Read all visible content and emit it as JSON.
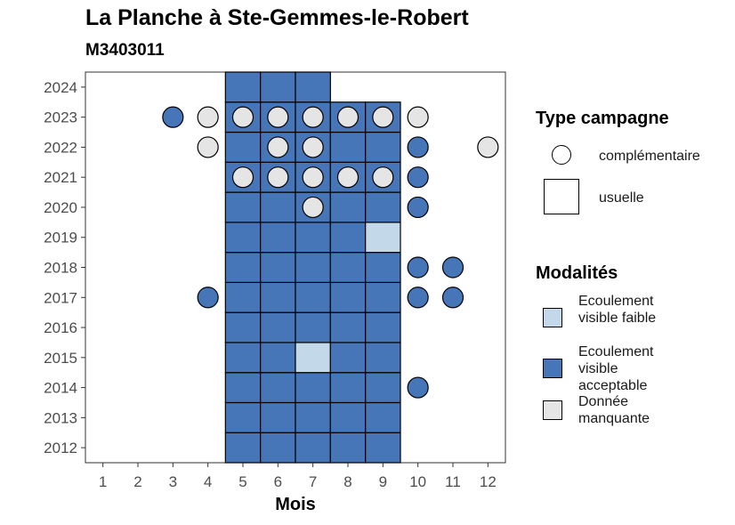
{
  "chart_data": {
    "type": "heatmap",
    "title": "La Planche à Ste-Gemmes-le-Robert",
    "subtitle": "M3403011",
    "xlabel": "Mois",
    "ylabel": "",
    "x_ticks": [
      "1",
      "2",
      "3",
      "4",
      "5",
      "6",
      "7",
      "8",
      "9",
      "10",
      "11",
      "12"
    ],
    "y_ticks": [
      "2012",
      "2013",
      "2014",
      "2015",
      "2016",
      "2017",
      "2018",
      "2019",
      "2020",
      "2021",
      "2022",
      "2023",
      "2024"
    ],
    "xlim": [
      0.5,
      12.5
    ],
    "ylim": [
      2011.5,
      2024.5
    ],
    "grid": false,
    "colors": {
      "faible": "#c3d9ea",
      "acceptable": "#4675b8",
      "manquante": "#e5e5e5"
    },
    "legend_shape": {
      "title": "Type campagne",
      "entries": [
        {
          "key": "complementaire",
          "label": "complémentaire",
          "shape": "circle"
        },
        {
          "key": "usuelle",
          "label": "usuelle",
          "shape": "square"
        }
      ]
    },
    "legend_color": {
      "title": "Modalités",
      "entries": [
        {
          "key": "faible",
          "label": "Ecoulement visible faible"
        },
        {
          "key": "acceptable",
          "label": "Ecoulement visible acceptable"
        },
        {
          "key": "manquante",
          "label": "Donnée manquante"
        }
      ]
    },
    "usuelle": [
      {
        "year": 2012,
        "month": 5,
        "mod": "acceptable"
      },
      {
        "year": 2012,
        "month": 6,
        "mod": "acceptable"
      },
      {
        "year": 2012,
        "month": 7,
        "mod": "acceptable"
      },
      {
        "year": 2012,
        "month": 8,
        "mod": "acceptable"
      },
      {
        "year": 2012,
        "month": 9,
        "mod": "acceptable"
      },
      {
        "year": 2013,
        "month": 5,
        "mod": "acceptable"
      },
      {
        "year": 2013,
        "month": 6,
        "mod": "acceptable"
      },
      {
        "year": 2013,
        "month": 7,
        "mod": "acceptable"
      },
      {
        "year": 2013,
        "month": 8,
        "mod": "acceptable"
      },
      {
        "year": 2013,
        "month": 9,
        "mod": "acceptable"
      },
      {
        "year": 2014,
        "month": 5,
        "mod": "acceptable"
      },
      {
        "year": 2014,
        "month": 6,
        "mod": "acceptable"
      },
      {
        "year": 2014,
        "month": 7,
        "mod": "acceptable"
      },
      {
        "year": 2014,
        "month": 8,
        "mod": "acceptable"
      },
      {
        "year": 2014,
        "month": 9,
        "mod": "acceptable"
      },
      {
        "year": 2015,
        "month": 5,
        "mod": "acceptable"
      },
      {
        "year": 2015,
        "month": 6,
        "mod": "acceptable"
      },
      {
        "year": 2015,
        "month": 7,
        "mod": "faible"
      },
      {
        "year": 2015,
        "month": 8,
        "mod": "acceptable"
      },
      {
        "year": 2015,
        "month": 9,
        "mod": "acceptable"
      },
      {
        "year": 2016,
        "month": 5,
        "mod": "acceptable"
      },
      {
        "year": 2016,
        "month": 6,
        "mod": "acceptable"
      },
      {
        "year": 2016,
        "month": 7,
        "mod": "acceptable"
      },
      {
        "year": 2016,
        "month": 8,
        "mod": "acceptable"
      },
      {
        "year": 2016,
        "month": 9,
        "mod": "acceptable"
      },
      {
        "year": 2017,
        "month": 5,
        "mod": "acceptable"
      },
      {
        "year": 2017,
        "month": 6,
        "mod": "acceptable"
      },
      {
        "year": 2017,
        "month": 7,
        "mod": "acceptable"
      },
      {
        "year": 2017,
        "month": 8,
        "mod": "acceptable"
      },
      {
        "year": 2017,
        "month": 9,
        "mod": "acceptable"
      },
      {
        "year": 2018,
        "month": 5,
        "mod": "acceptable"
      },
      {
        "year": 2018,
        "month": 6,
        "mod": "acceptable"
      },
      {
        "year": 2018,
        "month": 7,
        "mod": "acceptable"
      },
      {
        "year": 2018,
        "month": 8,
        "mod": "acceptable"
      },
      {
        "year": 2018,
        "month": 9,
        "mod": "acceptable"
      },
      {
        "year": 2019,
        "month": 5,
        "mod": "acceptable"
      },
      {
        "year": 2019,
        "month": 6,
        "mod": "acceptable"
      },
      {
        "year": 2019,
        "month": 7,
        "mod": "acceptable"
      },
      {
        "year": 2019,
        "month": 8,
        "mod": "acceptable"
      },
      {
        "year": 2019,
        "month": 9,
        "mod": "faible"
      },
      {
        "year": 2020,
        "month": 5,
        "mod": "acceptable"
      },
      {
        "year": 2020,
        "month": 6,
        "mod": "acceptable"
      },
      {
        "year": 2020,
        "month": 7,
        "mod": "acceptable"
      },
      {
        "year": 2020,
        "month": 8,
        "mod": "acceptable"
      },
      {
        "year": 2020,
        "month": 9,
        "mod": "acceptable"
      },
      {
        "year": 2021,
        "month": 5,
        "mod": "acceptable"
      },
      {
        "year": 2021,
        "month": 6,
        "mod": "acceptable"
      },
      {
        "year": 2021,
        "month": 7,
        "mod": "acceptable"
      },
      {
        "year": 2021,
        "month": 8,
        "mod": "acceptable"
      },
      {
        "year": 2021,
        "month": 9,
        "mod": "acceptable"
      },
      {
        "year": 2022,
        "month": 5,
        "mod": "acceptable"
      },
      {
        "year": 2022,
        "month": 6,
        "mod": "acceptable"
      },
      {
        "year": 2022,
        "month": 7,
        "mod": "acceptable"
      },
      {
        "year": 2022,
        "month": 8,
        "mod": "acceptable"
      },
      {
        "year": 2022,
        "month": 9,
        "mod": "acceptable"
      },
      {
        "year": 2023,
        "month": 5,
        "mod": "acceptable"
      },
      {
        "year": 2023,
        "month": 6,
        "mod": "acceptable"
      },
      {
        "year": 2023,
        "month": 7,
        "mod": "acceptable"
      },
      {
        "year": 2023,
        "month": 8,
        "mod": "acceptable"
      },
      {
        "year": 2023,
        "month": 9,
        "mod": "acceptable"
      },
      {
        "year": 2024,
        "month": 5,
        "mod": "acceptable"
      },
      {
        "year": 2024,
        "month": 6,
        "mod": "acceptable"
      },
      {
        "year": 2024,
        "month": 7,
        "mod": "acceptable"
      }
    ],
    "complementaire": [
      {
        "year": 2023,
        "month": 3,
        "mod": "acceptable"
      },
      {
        "year": 2023,
        "month": 4,
        "mod": "manquante"
      },
      {
        "year": 2023,
        "month": 5,
        "mod": "manquante"
      },
      {
        "year": 2023,
        "month": 6,
        "mod": "manquante"
      },
      {
        "year": 2023,
        "month": 7,
        "mod": "manquante"
      },
      {
        "year": 2023,
        "month": 8,
        "mod": "manquante"
      },
      {
        "year": 2023,
        "month": 9,
        "mod": "manquante"
      },
      {
        "year": 2023,
        "month": 10,
        "mod": "manquante"
      },
      {
        "year": 2022,
        "month": 4,
        "mod": "manquante"
      },
      {
        "year": 2022,
        "month": 6,
        "mod": "manquante"
      },
      {
        "year": 2022,
        "month": 7,
        "mod": "manquante"
      },
      {
        "year": 2022,
        "month": 10,
        "mod": "acceptable"
      },
      {
        "year": 2022,
        "month": 12,
        "mod": "manquante"
      },
      {
        "year": 2021,
        "month": 5,
        "mod": "manquante"
      },
      {
        "year": 2021,
        "month": 6,
        "mod": "manquante"
      },
      {
        "year": 2021,
        "month": 7,
        "mod": "manquante"
      },
      {
        "year": 2021,
        "month": 8,
        "mod": "manquante"
      },
      {
        "year": 2021,
        "month": 9,
        "mod": "manquante"
      },
      {
        "year": 2021,
        "month": 10,
        "mod": "acceptable"
      },
      {
        "year": 2020,
        "month": 7,
        "mod": "manquante"
      },
      {
        "year": 2020,
        "month": 10,
        "mod": "acceptable"
      },
      {
        "year": 2018,
        "month": 10,
        "mod": "acceptable"
      },
      {
        "year": 2018,
        "month": 11,
        "mod": "acceptable"
      },
      {
        "year": 2017,
        "month": 4,
        "mod": "acceptable"
      },
      {
        "year": 2017,
        "month": 10,
        "mod": "acceptable"
      },
      {
        "year": 2017,
        "month": 11,
        "mod": "acceptable"
      },
      {
        "year": 2014,
        "month": 10,
        "mod": "acceptable"
      }
    ]
  }
}
